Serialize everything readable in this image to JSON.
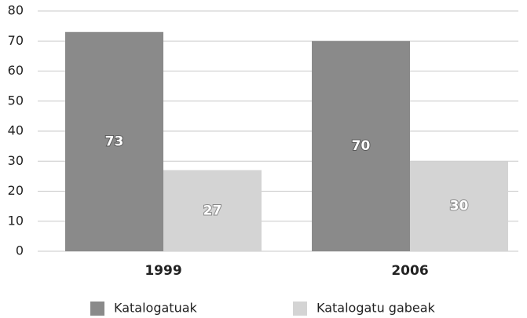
{
  "chart_data": {
    "type": "bar",
    "categories": [
      "1999",
      "2006"
    ],
    "series": [
      {
        "name": "Katalogatuak",
        "color": "#8a8a8a",
        "values": [
          73,
          70
        ]
      },
      {
        "name": "Katalogatu gabeak",
        "color": "#d4d4d4",
        "values": [
          27,
          30
        ]
      }
    ],
    "ylim": [
      0,
      80
    ],
    "yticks": [
      0,
      10,
      20,
      30,
      40,
      50,
      60,
      70,
      80
    ],
    "grid": true,
    "legend": "bottom"
  }
}
